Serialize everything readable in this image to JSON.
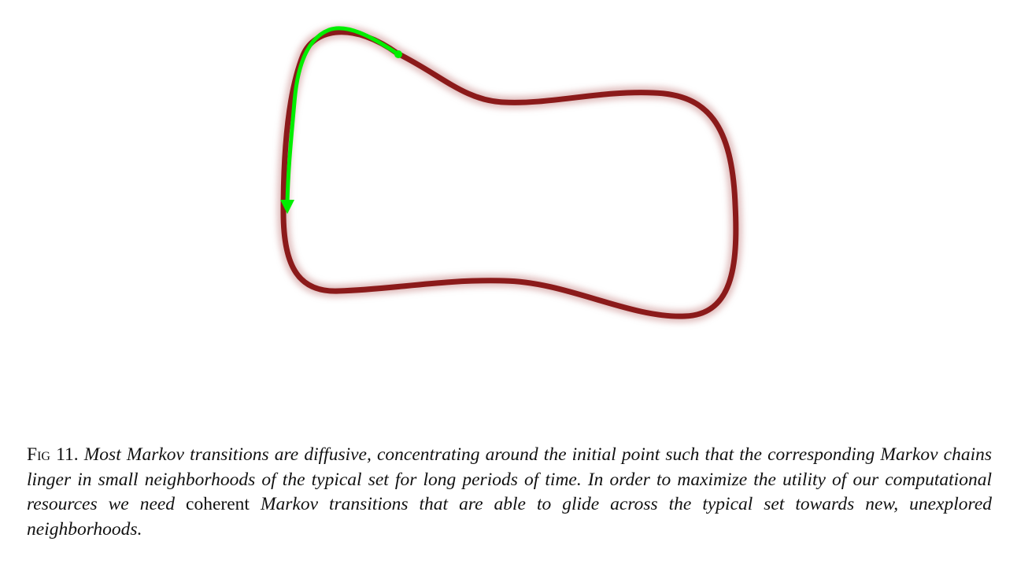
{
  "figure": {
    "description_colors": {
      "typical_set": "#8b1a1a",
      "typical_set_glow": "#b55a5a",
      "trajectory": "#00ee00"
    },
    "icons": {
      "trajectory_arrow": "arrow-down-icon"
    }
  },
  "caption": {
    "label": "Fig 11.",
    "segment_1": "Most Markov transitions are diffusive, concentrating around the initial point such that the corresponding Markov chains linger in small neighborhoods of the typical set for long periods of time. In order to maximize the utility of our computational resources we need",
    "emphasis_word": "coherent",
    "segment_2": "Markov transitions that are able to glide across the typical set towards new, unexplored neighborhoods."
  }
}
